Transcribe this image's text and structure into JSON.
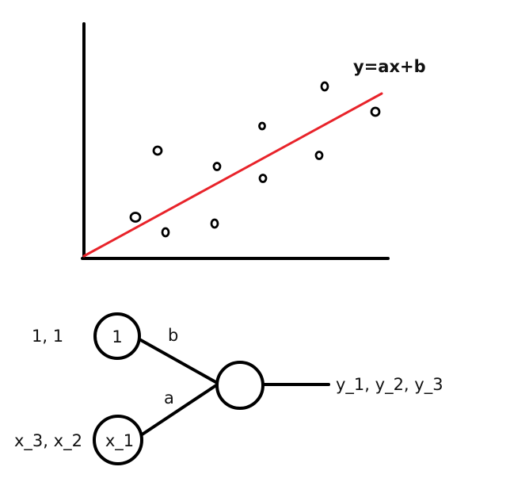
{
  "scatter": {
    "equation_label": "y=ax+b",
    "point_count": 10
  },
  "network": {
    "bias_node_label": "1",
    "bias_input_text": "1, 1",
    "input_node_label": "x_1",
    "input_values_text": "x_3, x_2",
    "weight_bias": "b",
    "weight_input": "a",
    "output_text": "y_1, y_2, y_3"
  },
  "colors": {
    "ink": "#000000",
    "regression_line": "#e8232a"
  }
}
